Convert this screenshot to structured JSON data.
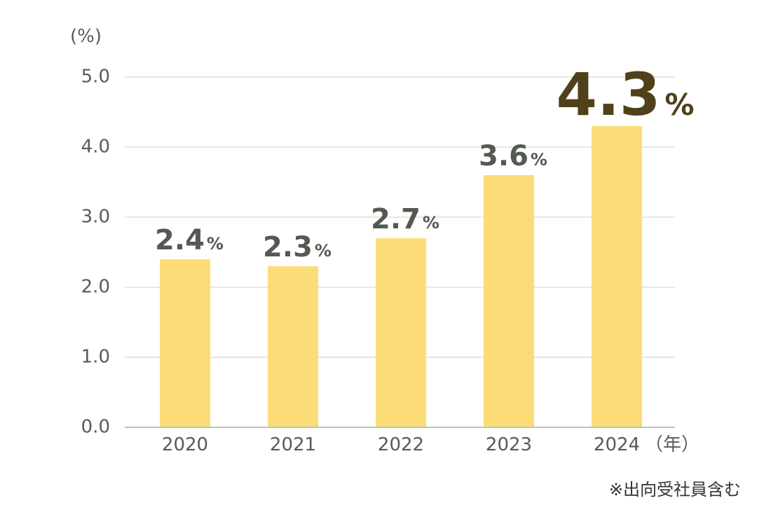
{
  "chart_data": {
    "type": "bar",
    "categories": [
      "2020",
      "2021",
      "2022",
      "2023",
      "2024"
    ],
    "values": [
      2.4,
      2.3,
      2.7,
      3.6,
      4.3
    ],
    "value_labels": [
      "2.4",
      "2.3",
      "2.7",
      "3.6",
      "4.3"
    ],
    "value_unit": "%",
    "y_unit_label": "(%)",
    "x_unit_label": "（年）",
    "ylim": [
      0,
      5
    ],
    "yticks": [
      "0.0",
      "1.0",
      "2.0",
      "3.0",
      "4.0",
      "5.0"
    ],
    "grid": true,
    "highlight_index": 4,
    "footnote": "※出向受社員含む"
  },
  "colors": {
    "bar": "#fcdc78",
    "label": "#545951",
    "highlight_label": "#4f4119",
    "grid": "#d8e3cf"
  }
}
